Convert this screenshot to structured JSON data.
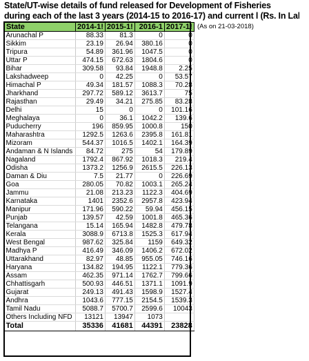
{
  "title": {
    "line1": "State/UT-wise details of fund released for Development of Fisheries",
    "line2": "during each of the last 3 years (2014-15 to 2016-17) and current l (Rs. In Lakh)"
  },
  "note": "(As on 21-03-2018)",
  "columns": [
    "State",
    "2014-1!",
    "2015-1!",
    "2016-1",
    "2017-1!"
  ],
  "rows": [
    [
      "Arunachal P",
      "88.33",
      "81.3",
      "0",
      "0"
    ],
    [
      "Sikkim",
      "23.19",
      "26.94",
      "380.16",
      "0"
    ],
    [
      "Tripura",
      "54.89",
      "361.96",
      "1047.5",
      "0"
    ],
    [
      "Uttar P",
      "474.15",
      "672.63",
      "1804.6",
      "0"
    ],
    [
      "Bihar",
      "309.58",
      "93.84",
      "1948.8",
      "2.25"
    ],
    [
      "Lakshadweep",
      "0",
      "42.25",
      "0",
      "53.57"
    ],
    [
      "Himachal P",
      "49.34",
      "181.57",
      "1088.3",
      "70.28"
    ],
    [
      "Jharkhand",
      "297.72",
      "589.12",
      "3613.7",
      "75"
    ],
    [
      "Rajasthan",
      "29.49",
      "34.21",
      "275.85",
      "83.28"
    ],
    [
      "Delhi",
      "15",
      "0",
      "0",
      "101.16"
    ],
    [
      "Meghalaya",
      "0",
      "36.1",
      "1042.2",
      "139.6"
    ],
    [
      "Puducherry",
      "196",
      "859.95",
      "1000.8",
      "150"
    ],
    [
      "Maharashtra",
      "1292.5",
      "1263.6",
      "2395.8",
      "161.81"
    ],
    [
      "Mizoram",
      "544.37",
      "1016.5",
      "1402.1",
      "164.39"
    ],
    [
      "Andaman & N Islands",
      "84.72",
      "275",
      "54",
      "179.89"
    ],
    [
      "Nagaland",
      "1792.4",
      "867.92",
      "1018.3",
      "219.4"
    ],
    [
      "Odisha",
      "1373.2",
      "1256.9",
      "2615.5",
      "226.13"
    ],
    [
      "Daman & Diu",
      "7.5",
      "21.77",
      "0",
      "226.69"
    ],
    [
      "Goa",
      "280.05",
      "70.82",
      "1003.1",
      "265.24"
    ],
    [
      "Jammu",
      "21.08",
      "213.23",
      "1122.3",
      "404.69"
    ],
    [
      "Karnataka",
      "1401",
      "2352.6",
      "2957.8",
      "423.94"
    ],
    [
      "Manipur",
      "171.96",
      "590.22",
      "59.94",
      "456.15"
    ],
    [
      "Punjab",
      "139.57",
      "42.59",
      "1001.8",
      "465.36"
    ],
    [
      "Telangana",
      "15.14",
      "165.94",
      "1482.8",
      "479.78"
    ],
    [
      "Kerala",
      "3088.9",
      "6713.8",
      "1525.3",
      "617.94"
    ],
    [
      "West Bengal",
      "987.62",
      "325.84",
      "1159",
      "649.32"
    ],
    [
      "Madhya P",
      "416.49",
      "346.09",
      "1406.2",
      "672.02"
    ],
    [
      "Uttarakhand",
      "82.97",
      "48.85",
      "955.05",
      "746.16"
    ],
    [
      "Haryana",
      "134.82",
      "194.95",
      "1122.1",
      "779.36"
    ],
    [
      "Assam",
      "462.35",
      "971.14",
      "1762.7",
      "799.66"
    ],
    [
      "Chhattisgarh",
      "500.93",
      "446.51",
      "1371.1",
      "1091.9"
    ],
    [
      "Gujarat",
      "249.13",
      "491.43",
      "1598.9",
      "1527.4"
    ],
    [
      "Andhra",
      "1043.6",
      "777.15",
      "2154.5",
      "1539.3"
    ],
    [
      "Tamil Nadu",
      "5088.7",
      "5700.7",
      "2599.6",
      "10043"
    ],
    [
      "Others Including NFD",
      "13121",
      "13947",
      "1073",
      ""
    ]
  ],
  "total": [
    "Total",
    "35336",
    "41681",
    "44391",
    "23828"
  ]
}
